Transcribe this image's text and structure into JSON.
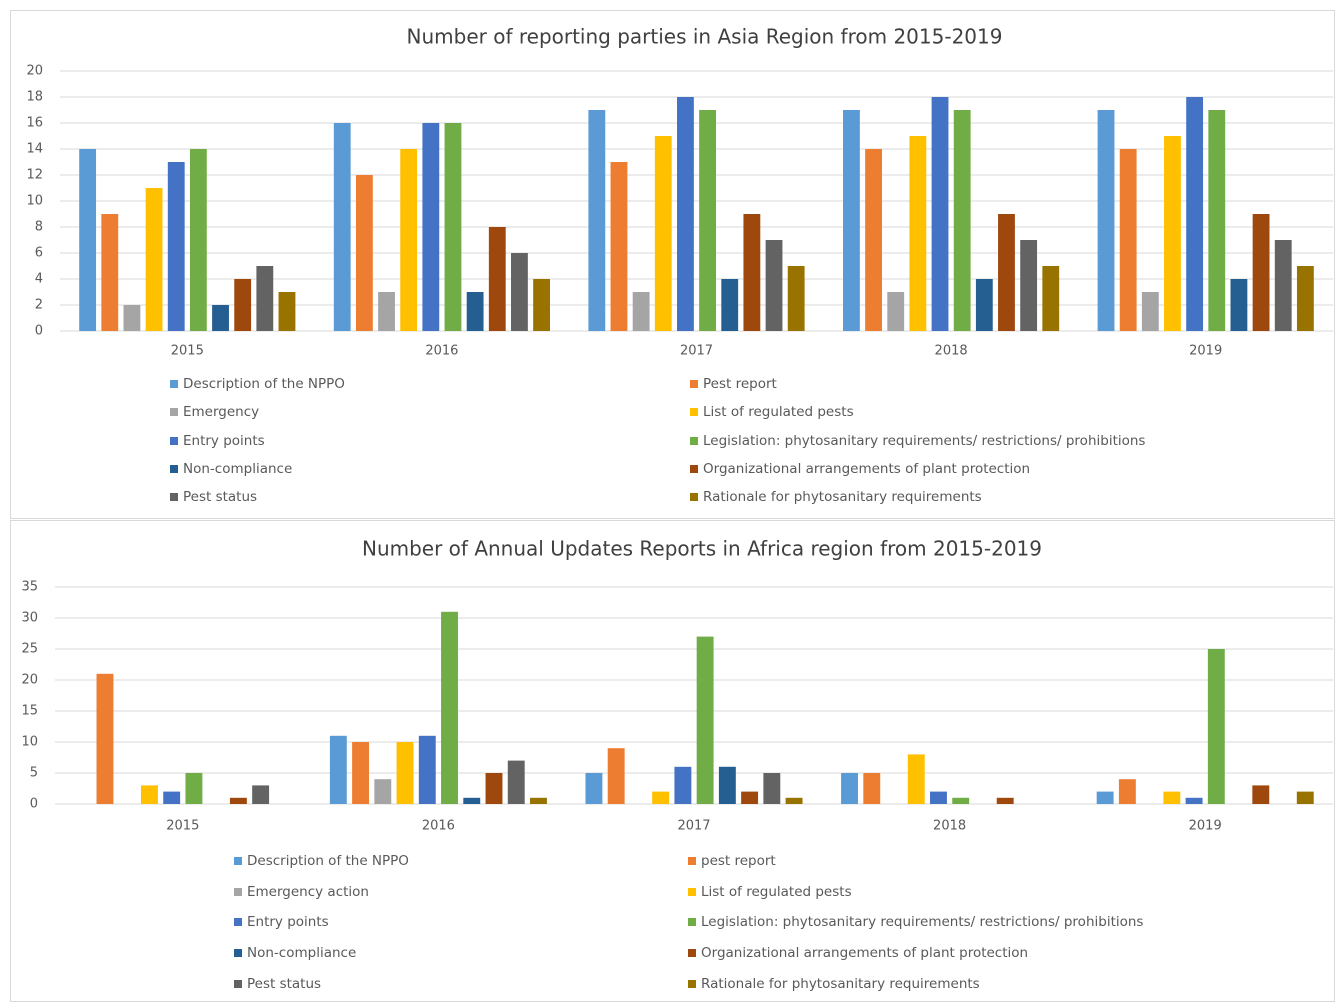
{
  "chart_data": [
    {
      "type": "bar",
      "title": "Number of reporting parties in Asia Region from 2015-2019",
      "categories": [
        "2015",
        "2016",
        "2017",
        "2018",
        "2019"
      ],
      "ylim": [
        0,
        20
      ],
      "yticks": [
        0,
        2,
        4,
        6,
        8,
        10,
        12,
        14,
        16,
        18,
        20
      ],
      "grid": true,
      "series": [
        {
          "name": "Description of the NPPO",
          "color": "#5b9bd5",
          "values": [
            14,
            16,
            17,
            17,
            17
          ]
        },
        {
          "name": "Pest report",
          "color": "#ed7d31",
          "values": [
            9,
            12,
            13,
            14,
            14
          ]
        },
        {
          "name": "Emergency",
          "color": "#a5a5a5",
          "values": [
            2,
            3,
            3,
            3,
            3
          ]
        },
        {
          "name": "List of regulated pests",
          "color": "#ffc000",
          "values": [
            11,
            14,
            15,
            15,
            15
          ]
        },
        {
          "name": "Entry points",
          "color": "#4472c4",
          "values": [
            13,
            16,
            18,
            18,
            18
          ]
        },
        {
          "name": "Legislation: phytosanitary requirements/ restrictions/ prohibitions",
          "color": "#70ad47",
          "values": [
            14,
            16,
            17,
            17,
            17
          ]
        },
        {
          "name": "Non-compliance",
          "color": "#255e91",
          "values": [
            2,
            3,
            4,
            4,
            4
          ]
        },
        {
          "name": "Organizational arrangements of plant protection",
          "color": "#9e480e",
          "values": [
            4,
            8,
            9,
            9,
            9
          ]
        },
        {
          "name": "Pest status",
          "color": "#636363",
          "values": [
            5,
            6,
            7,
            7,
            7
          ]
        },
        {
          "name": "Rationale for phytosanitary requirements",
          "color": "#997300",
          "values": [
            3,
            4,
            5,
            5,
            5
          ]
        }
      ]
    },
    {
      "type": "bar",
      "title": "Number of Annual Updates Reports in Africa region from 2015-2019",
      "categories": [
        "2015",
        "2016",
        "2017",
        "2018",
        "2019"
      ],
      "ylim": [
        0,
        35
      ],
      "yticks": [
        0,
        5,
        10,
        15,
        20,
        25,
        30,
        35
      ],
      "grid": true,
      "series": [
        {
          "name": "Description of the NPPO",
          "color": "#5b9bd5",
          "values": [
            0,
            11,
            5,
            5,
            2
          ]
        },
        {
          "name": "pest report",
          "color": "#ed7d31",
          "values": [
            21,
            10,
            9,
            5,
            4
          ]
        },
        {
          "name": "Emergency action",
          "color": "#a5a5a5",
          "values": [
            0,
            4,
            0,
            0,
            0
          ]
        },
        {
          "name": "List of regulated pests",
          "color": "#ffc000",
          "values": [
            3,
            10,
            2,
            8,
            2
          ]
        },
        {
          "name": "Entry points",
          "color": "#4472c4",
          "values": [
            2,
            11,
            6,
            2,
            1
          ]
        },
        {
          "name": "Legislation: phytosanitary requirements/ restrictions/ prohibitions",
          "color": "#70ad47",
          "values": [
            5,
            31,
            27,
            1,
            25
          ]
        },
        {
          "name": "Non-compliance",
          "color": "#255e91",
          "values": [
            0,
            1,
            6,
            0,
            0
          ]
        },
        {
          "name": "Organizational arrangements of plant protection",
          "color": "#9e480e",
          "values": [
            1,
            5,
            2,
            1,
            3
          ]
        },
        {
          "name": "Pest status",
          "color": "#636363",
          "values": [
            3,
            7,
            5,
            0,
            0
          ]
        },
        {
          "name": "Rationale for phytosanitary requirements",
          "color": "#997300",
          "values": [
            0,
            1,
            1,
            0,
            2
          ]
        }
      ]
    }
  ]
}
